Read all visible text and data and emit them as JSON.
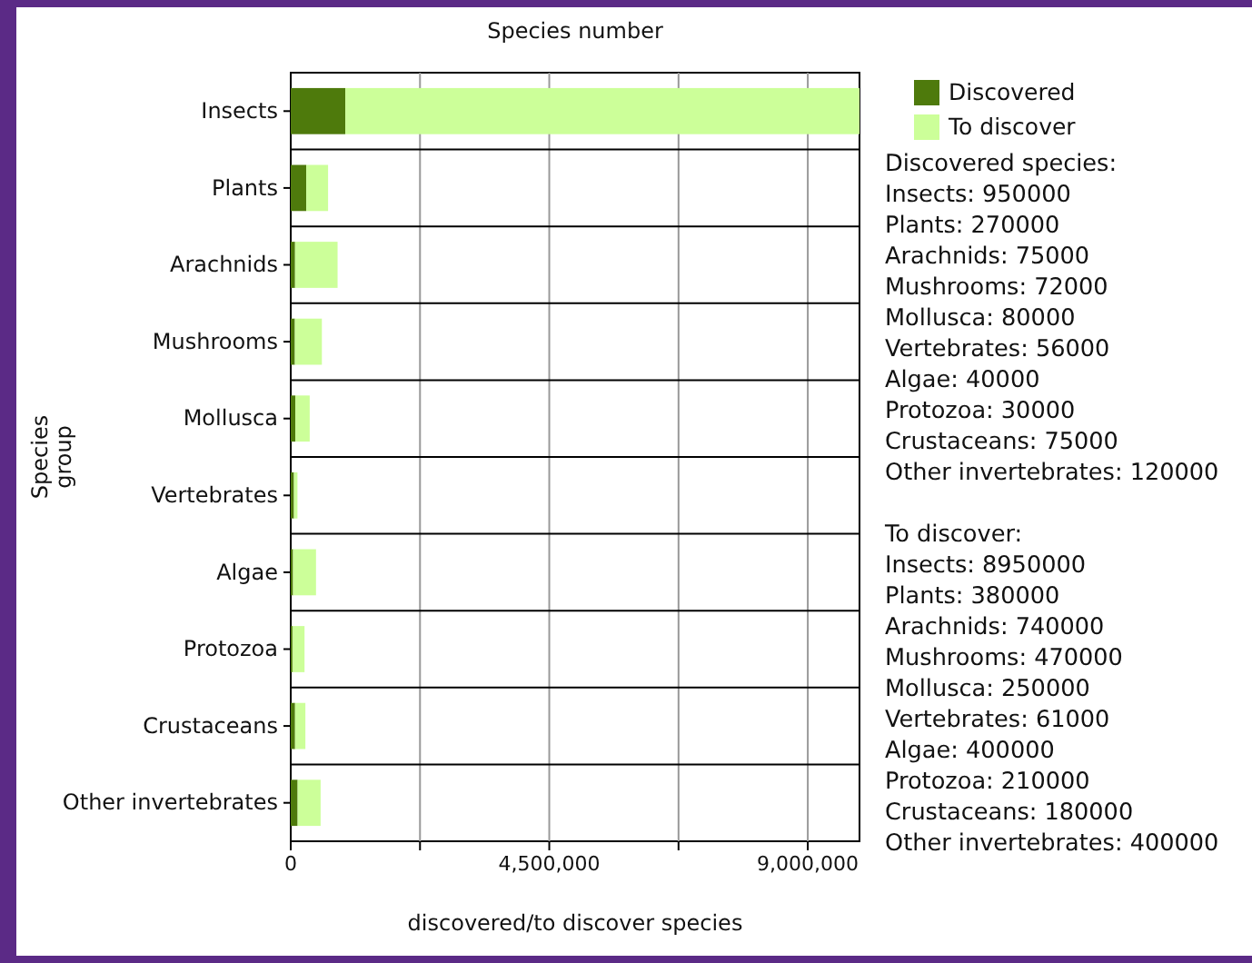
{
  "chart_data": {
    "type": "bar",
    "orientation": "horizontal",
    "stacked": true,
    "title": "Species number",
    "xlabel": "discovered/to discover species",
    "ylabel": "Species\ngroup",
    "categories": [
      "Insects",
      "Plants",
      "Arachnids",
      "Mushrooms",
      "Mollusca",
      "Vertebrates",
      "Algae",
      "Protozoa",
      "Crustaceans",
      "Other invertebrates"
    ],
    "series": [
      {
        "name": "Discovered",
        "color": "#4e7a0c",
        "values": [
          950000,
          270000,
          75000,
          72000,
          80000,
          56000,
          40000,
          30000,
          75000,
          120000
        ]
      },
      {
        "name": "To discover",
        "color": "#ccff99",
        "values": [
          8950000,
          380000,
          740000,
          470000,
          250000,
          61000,
          400000,
          210000,
          180000,
          400000
        ]
      }
    ],
    "xlim": [
      0,
      9900000
    ],
    "xticks": [
      0,
      {
        "value": 2250000,
        "label": null
      },
      {
        "value": 4500000,
        "label": "4,500,000"
      },
      {
        "value": 6750000,
        "label": null
      },
      {
        "value": 9000000,
        "label": "9,000,000"
      }
    ],
    "grid": true,
    "legend": "right",
    "annotations": [
      "Discovered species:\nInsects: 950000\nPlants: 270000\nArachnids: 75000\nMushrooms: 72000\nMollusca: 80000\nVertebrates: 56000\nAlgae: 40000\nProtozoa: 30000\nCrustaceans: 75000\nOther invertebrates: 120000",
      "To discover:\nInsects: 8950000\nPlants: 380000\nArachnids: 740000\nMushrooms: 470000\nMollusca: 250000\nVertebrates: 61000\nAlgae: 400000\nProtozoa: 210000\nCrustaceans: 180000\nOther invertebrates: 400000"
    ]
  }
}
